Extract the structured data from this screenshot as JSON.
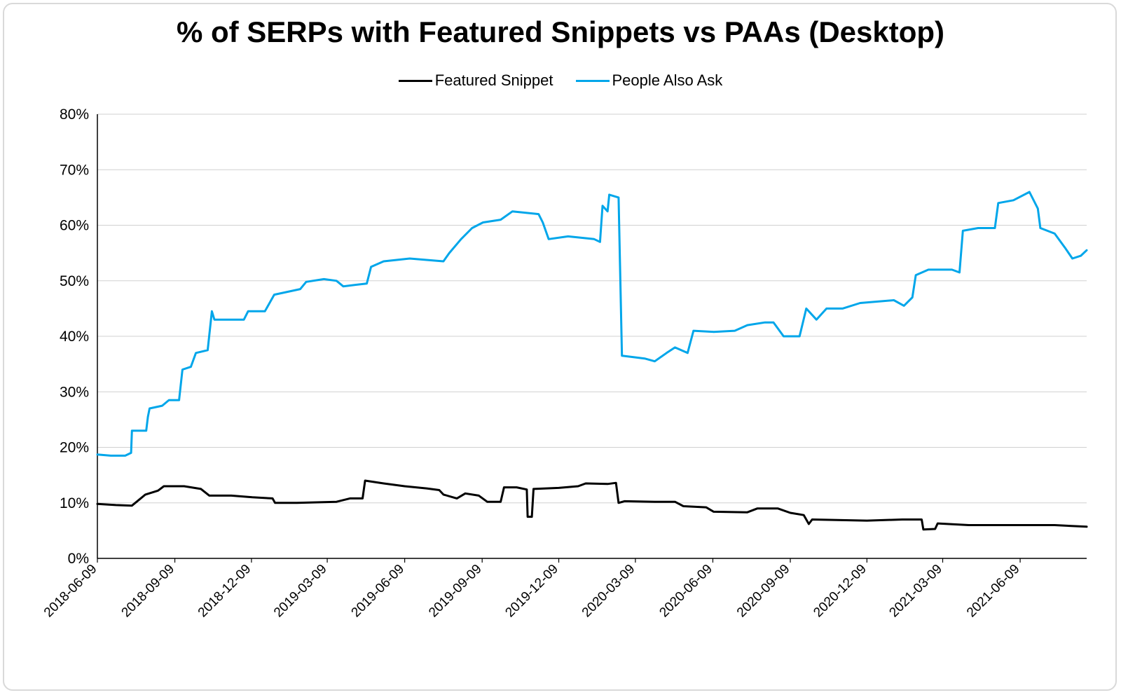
{
  "title": "% of SERPs with Featured Snippets vs PAAs (Desktop)",
  "colors": {
    "featured_snippet": "#000000",
    "people_also_ask": "#00a6ea",
    "grid": "#d0d0d0"
  },
  "chart_data": {
    "type": "line",
    "title": "% of SERPs with Featured Snippets vs PAAs (Desktop)",
    "xlabel": "",
    "ylabel": "",
    "ylim": [
      0,
      80
    ],
    "y_unit": "%",
    "yticks": [
      "0%",
      "10%",
      "20%",
      "30%",
      "40%",
      "50%",
      "60%",
      "70%",
      "80%"
    ],
    "x_tick_labels": [
      "2018-06-09",
      "2018-09-09",
      "2018-12-09",
      "2019-03-09",
      "2019-06-09",
      "2019-09-09",
      "2019-12-09",
      "2020-03-09",
      "2020-06-09",
      "2020-09-09",
      "2020-12-09",
      "2021-03-09",
      "2021-06-09"
    ],
    "x_range": [
      "2018-06-09",
      "2021-08-27"
    ],
    "grid": "horizontal",
    "legend_position": "top-center",
    "series": [
      {
        "name": "Featured Snippet",
        "color": "#000000",
        "points": [
          [
            "2018-06-09",
            9.8
          ],
          [
            "2018-07-01",
            9.6
          ],
          [
            "2018-07-20",
            9.5
          ],
          [
            "2018-07-28",
            10.5
          ],
          [
            "2018-08-05",
            11.5
          ],
          [
            "2018-08-20",
            12.2
          ],
          [
            "2018-08-27",
            13.0
          ],
          [
            "2018-09-20",
            13.0
          ],
          [
            "2018-10-10",
            12.5
          ],
          [
            "2018-10-20",
            11.3
          ],
          [
            "2018-11-15",
            11.3
          ],
          [
            "2018-12-10",
            11.0
          ],
          [
            "2019-01-03",
            10.8
          ],
          [
            "2019-01-06",
            10.0
          ],
          [
            "2019-02-01",
            10.0
          ],
          [
            "2019-03-20",
            10.2
          ],
          [
            "2019-04-05",
            10.8
          ],
          [
            "2019-04-20",
            10.8
          ],
          [
            "2019-04-23",
            14.0
          ],
          [
            "2019-05-15",
            13.5
          ],
          [
            "2019-06-09",
            13.0
          ],
          [
            "2019-07-05",
            12.6
          ],
          [
            "2019-07-20",
            12.3
          ],
          [
            "2019-07-25",
            11.5
          ],
          [
            "2019-08-10",
            10.8
          ],
          [
            "2019-08-20",
            11.7
          ],
          [
            "2019-09-05",
            11.3
          ],
          [
            "2019-09-15",
            10.2
          ],
          [
            "2019-10-01",
            10.2
          ],
          [
            "2019-10-05",
            12.8
          ],
          [
            "2019-10-20",
            12.8
          ],
          [
            "2019-11-01",
            12.4
          ],
          [
            "2019-11-02",
            7.5
          ],
          [
            "2019-11-07",
            7.5
          ],
          [
            "2019-11-09",
            12.5
          ],
          [
            "2019-12-09",
            12.7
          ],
          [
            "2020-01-01",
            13.0
          ],
          [
            "2020-01-10",
            13.5
          ],
          [
            "2020-02-05",
            13.4
          ],
          [
            "2020-02-15",
            13.6
          ],
          [
            "2020-02-18",
            10.0
          ],
          [
            "2020-02-25",
            10.3
          ],
          [
            "2020-04-01",
            10.2
          ],
          [
            "2020-04-25",
            10.2
          ],
          [
            "2020-05-05",
            9.4
          ],
          [
            "2020-06-01",
            9.2
          ],
          [
            "2020-06-10",
            8.4
          ],
          [
            "2020-07-20",
            8.3
          ],
          [
            "2020-08-01",
            9.0
          ],
          [
            "2020-08-25",
            9.0
          ],
          [
            "2020-09-09",
            8.2
          ],
          [
            "2020-09-25",
            7.8
          ],
          [
            "2020-10-01",
            6.2
          ],
          [
            "2020-10-05",
            7.0
          ],
          [
            "2020-12-09",
            6.8
          ],
          [
            "2021-01-20",
            7.0
          ],
          [
            "2021-02-12",
            7.0
          ],
          [
            "2021-02-14",
            5.2
          ],
          [
            "2021-02-28",
            5.3
          ],
          [
            "2021-03-03",
            6.3
          ],
          [
            "2021-04-09",
            6.0
          ],
          [
            "2021-06-09",
            6.0
          ],
          [
            "2021-07-20",
            6.0
          ],
          [
            "2021-08-27",
            5.7
          ]
        ]
      },
      {
        "name": "People Also Ask",
        "color": "#00a6ea",
        "points": [
          [
            "2018-06-09",
            18.7
          ],
          [
            "2018-06-25",
            18.5
          ],
          [
            "2018-07-12",
            18.5
          ],
          [
            "2018-07-19",
            19.0
          ],
          [
            "2018-07-20",
            23.0
          ],
          [
            "2018-08-06",
            23.0
          ],
          [
            "2018-08-08",
            25.5
          ],
          [
            "2018-08-10",
            27.0
          ],
          [
            "2018-08-25",
            27.5
          ],
          [
            "2018-09-02",
            28.5
          ],
          [
            "2018-09-14",
            28.5
          ],
          [
            "2018-09-18",
            34.0
          ],
          [
            "2018-09-28",
            34.5
          ],
          [
            "2018-10-04",
            37.0
          ],
          [
            "2018-10-18",
            37.5
          ],
          [
            "2018-10-23",
            44.5
          ],
          [
            "2018-10-26",
            43.0
          ],
          [
            "2018-11-30",
            43.0
          ],
          [
            "2018-12-05",
            44.5
          ],
          [
            "2018-12-25",
            44.5
          ],
          [
            "2019-01-05",
            47.5
          ],
          [
            "2019-02-05",
            48.5
          ],
          [
            "2019-02-12",
            49.8
          ],
          [
            "2019-03-05",
            50.3
          ],
          [
            "2019-03-20",
            50.0
          ],
          [
            "2019-03-28",
            49.0
          ],
          [
            "2019-04-25",
            49.5
          ],
          [
            "2019-04-30",
            52.5
          ],
          [
            "2019-05-15",
            53.5
          ],
          [
            "2019-06-15",
            54.0
          ],
          [
            "2019-07-25",
            53.5
          ],
          [
            "2019-08-01",
            55.0
          ],
          [
            "2019-08-15",
            57.5
          ],
          [
            "2019-08-28",
            59.5
          ],
          [
            "2019-09-10",
            60.5
          ],
          [
            "2019-10-01",
            61.0
          ],
          [
            "2019-10-15",
            62.5
          ],
          [
            "2019-11-15",
            62.0
          ],
          [
            "2019-11-20",
            60.5
          ],
          [
            "2019-11-27",
            57.5
          ],
          [
            "2019-12-20",
            58.0
          ],
          [
            "2020-01-20",
            57.5
          ],
          [
            "2020-01-27",
            57.0
          ],
          [
            "2020-01-30",
            63.5
          ],
          [
            "2020-02-05",
            62.5
          ],
          [
            "2020-02-07",
            65.5
          ],
          [
            "2020-02-18",
            65.0
          ],
          [
            "2020-02-22",
            36.5
          ],
          [
            "2020-03-20",
            36.0
          ],
          [
            "2020-04-01",
            35.5
          ],
          [
            "2020-04-15",
            37.0
          ],
          [
            "2020-04-25",
            38.0
          ],
          [
            "2020-05-10",
            37.0
          ],
          [
            "2020-05-17",
            41.0
          ],
          [
            "2020-06-10",
            40.8
          ],
          [
            "2020-07-05",
            41.0
          ],
          [
            "2020-07-20",
            42.0
          ],
          [
            "2020-08-10",
            42.5
          ],
          [
            "2020-08-20",
            42.5
          ],
          [
            "2020-09-01",
            40.0
          ],
          [
            "2020-09-20",
            40.0
          ],
          [
            "2020-09-28",
            45.0
          ],
          [
            "2020-10-10",
            43.0
          ],
          [
            "2020-10-22",
            45.0
          ],
          [
            "2020-11-10",
            45.0
          ],
          [
            "2020-12-01",
            46.0
          ],
          [
            "2021-01-10",
            46.5
          ],
          [
            "2021-01-22",
            45.5
          ],
          [
            "2021-02-01",
            47.0
          ],
          [
            "2021-02-05",
            51.0
          ],
          [
            "2021-02-20",
            52.0
          ],
          [
            "2021-03-20",
            52.0
          ],
          [
            "2021-03-29",
            51.5
          ],
          [
            "2021-04-02",
            59.0
          ],
          [
            "2021-04-20",
            59.5
          ],
          [
            "2021-05-10",
            59.5
          ],
          [
            "2021-05-14",
            64.0
          ],
          [
            "2021-06-01",
            64.5
          ],
          [
            "2021-06-20",
            66.0
          ],
          [
            "2021-06-30",
            63.0
          ],
          [
            "2021-07-03",
            59.5
          ],
          [
            "2021-07-20",
            58.5
          ],
          [
            "2021-08-01",
            56.0
          ],
          [
            "2021-08-10",
            54.0
          ],
          [
            "2021-08-20",
            54.5
          ],
          [
            "2021-08-27",
            55.5
          ]
        ]
      }
    ]
  }
}
